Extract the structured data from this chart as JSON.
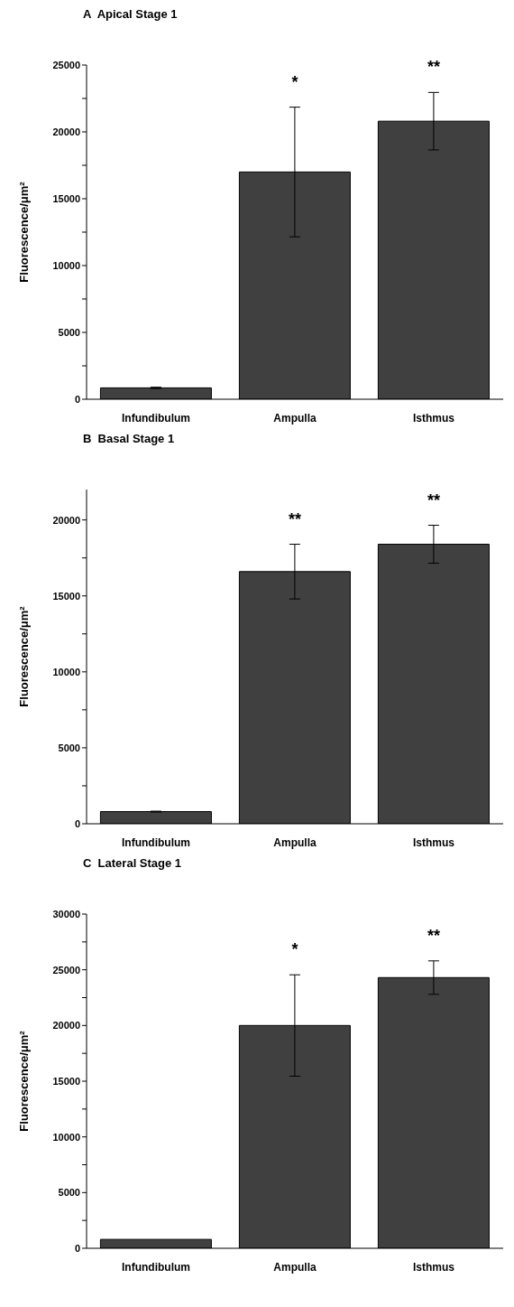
{
  "chart_data": [
    {
      "type": "bar",
      "title": "A  Apical Stage 1",
      "ylabel": "Fluorescence/μm²",
      "categories": [
        "Infundibulum",
        "Ampulla",
        "Isthmus"
      ],
      "values": [
        850,
        17000,
        20800
      ],
      "errors": [
        50,
        4850,
        2150
      ],
      "color": "#404040",
      "ylim": [
        0,
        25000
      ],
      "yticks": [
        0,
        {
          "value": 2500,
          "label": null
        },
        5000,
        {
          "value": 7500,
          "label": null
        },
        10000,
        {
          "value": 12500,
          "label": null
        },
        15000,
        {
          "value": 17500,
          "label": null
        },
        20000,
        {
          "value": 22500,
          "label": null
        },
        25000
      ],
      "grid": false,
      "legend": false,
      "annotations": [
        "*",
        "**"
      ]
    },
    {
      "type": "bar",
      "title": "B  Basal Stage 1",
      "ylabel": "Fluorescence/μm²",
      "categories": [
        "Infundibulum",
        "Ampulla",
        "Isthmus"
      ],
      "values": [
        800,
        16600,
        18400
      ],
      "errors": [
        30,
        1800,
        1250
      ],
      "color": "#404040",
      "ylim": [
        0,
        22000
      ],
      "yticks": [
        0,
        {
          "value": 2500,
          "label": null
        },
        5000,
        {
          "value": 7500,
          "label": null
        },
        10000,
        {
          "value": 12500,
          "label": null
        },
        15000,
        {
          "value": 17500,
          "label": null
        },
        20000
      ],
      "grid": false,
      "legend": false,
      "annotations": [
        "**",
        "**"
      ]
    },
    {
      "type": "bar",
      "title": "C  Lateral Stage 1",
      "ylabel": "Fluorescence/μm²",
      "categories": [
        "Infundibulum",
        "Ampulla",
        "Isthmus"
      ],
      "values": [
        800,
        20000,
        24300
      ],
      "errors": [
        null,
        4550,
        1500
      ],
      "color": "#404040",
      "ylim": [
        0,
        30000
      ],
      "yticks": [
        0,
        {
          "value": 2500,
          "label": null
        },
        5000,
        {
          "value": 7500,
          "label": null
        },
        10000,
        {
          "value": 12500,
          "label": null
        },
        15000,
        {
          "value": 17500,
          "label": null
        },
        20000,
        {
          "value": 22500,
          "label": null
        },
        25000,
        {
          "value": 27500,
          "label": null
        },
        30000
      ],
      "grid": false,
      "legend": false,
      "annotations": [
        "*",
        "**"
      ]
    }
  ]
}
